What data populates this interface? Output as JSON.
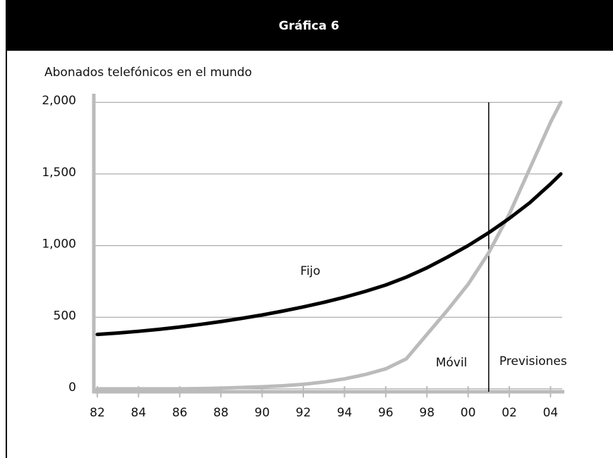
{
  "chart_data": {
    "type": "line",
    "title": "Gráfica 6",
    "subtitle": "Abonados telefónicos en el mundo",
    "x": [
      1982,
      1983,
      1984,
      1985,
      1986,
      1987,
      1988,
      1989,
      1990,
      1991,
      1992,
      1993,
      1994,
      1995,
      1996,
      1997,
      1998,
      1999,
      2000,
      2001,
      2002,
      2003,
      2004,
      2004.5
    ],
    "series": [
      {
        "name": "Fijo",
        "color": "#000000",
        "values": [
          380,
          390,
          402,
          416,
          432,
          450,
          470,
          492,
          516,
          543,
          572,
          604,
          640,
          680,
          725,
          780,
          845,
          920,
          1000,
          1090,
          1190,
          1300,
          1430,
          1500
        ]
      },
      {
        "name": "Móvil",
        "color": "#bbbbbb",
        "values": [
          0,
          0,
          0,
          0,
          0,
          2,
          5,
          10,
          15,
          22,
          32,
          48,
          70,
          100,
          140,
          210,
          380,
          550,
          730,
          950,
          1220,
          1540,
          1860,
          2000
        ]
      }
    ],
    "forecast": {
      "label": "Previsiones",
      "x": 2001
    },
    "xlim": [
      1981.83,
      2004.67
    ],
    "xticks": [
      {
        "value": 1982,
        "label": "82"
      },
      {
        "value": 1984,
        "label": "84"
      },
      {
        "value": 1986,
        "label": "86"
      },
      {
        "value": 1988,
        "label": "88"
      },
      {
        "value": 1990,
        "label": "90"
      },
      {
        "value": 1992,
        "label": "92"
      },
      {
        "value": 1994,
        "label": "94"
      },
      {
        "value": 1996,
        "label": "96"
      },
      {
        "value": 1998,
        "label": "98"
      },
      {
        "value": 2000,
        "label": "00"
      },
      {
        "value": 2002,
        "label": "02"
      },
      {
        "value": 2004,
        "label": "04"
      }
    ],
    "ylim": [
      -20,
      2060
    ],
    "yticks": [
      0,
      {
        "value": 500,
        "label": "500"
      },
      {
        "value": 1000,
        "label": "1,000"
      },
      {
        "value": 1500,
        "label": "1,500"
      },
      {
        "value": 2000,
        "label": "2,000"
      }
    ],
    "grid": true,
    "axis_color": "#bbbbbb"
  }
}
